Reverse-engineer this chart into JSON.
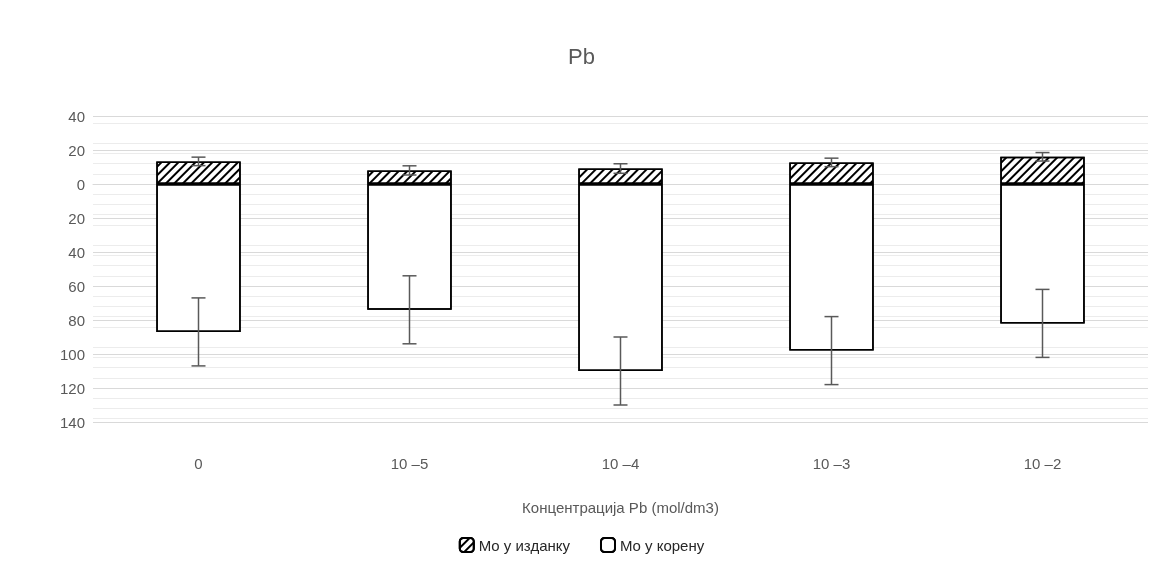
{
  "chart_data": {
    "type": "bar",
    "title": "Pb",
    "xlabel": "Концентрација Pb (mol/dm3)",
    "categories": [
      "0",
      "10 –5",
      "10 –4",
      "10 –3",
      "10 –2"
    ],
    "series": [
      {
        "name": "Mo у изданку",
        "color": "#ffffff",
        "values": [
          13.3,
          8,
          9.1,
          12.7,
          16
        ],
        "errors": [
          2.5,
          2.7,
          2.8,
          2.5,
          2.5
        ]
      },
      {
        "name": "Mo у корену",
        "color": "#ffffff",
        "values": [
          -87,
          -74,
          -110,
          -98,
          -82
        ],
        "errors": [
          20,
          20,
          20,
          20,
          20
        ]
      }
    ],
    "stacked": true,
    "ylim": [
      -140,
      40
    ],
    "yticks": [
      {
        "value": -140,
        "label": "140"
      },
      {
        "value": -120,
        "label": "120"
      },
      {
        "value": -100,
        "label": "100"
      },
      {
        "value": -80,
        "label": "80"
      },
      {
        "value": -60,
        "label": "60"
      },
      {
        "value": -40,
        "label": "40"
      },
      {
        "value": -20,
        "label": "20"
      },
      0,
      20,
      40
    ],
    "grid": "y",
    "legend": "bottom"
  }
}
